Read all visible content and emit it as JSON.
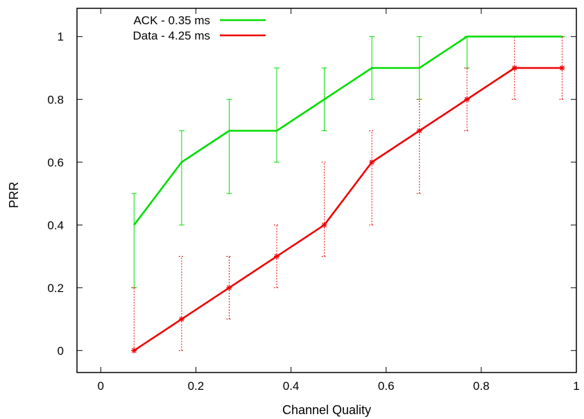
{
  "chart_data": {
    "type": "line",
    "title": "",
    "xlabel": "Channel Quality",
    "ylabel": "PRR",
    "xlim": [
      -0.05,
      1.0
    ],
    "ylim": [
      -0.07,
      1.09
    ],
    "xticks": [
      0,
      0.2,
      0.4,
      0.6,
      0.8,
      1
    ],
    "yticks": [
      0,
      0.2,
      0.4,
      0.6,
      0.8,
      1
    ],
    "xtick_labels": [
      "0",
      "0.2",
      "0.4",
      "0.6",
      "0.8",
      "1"
    ],
    "ytick_labels": [
      "0",
      "0.2",
      "0.4",
      "0.6",
      "0.8",
      "1"
    ],
    "grid": false,
    "legend_position": "top-left",
    "x": [
      0.07,
      0.17,
      0.27,
      0.37,
      0.47,
      0.57,
      0.67,
      0.77,
      0.87,
      0.97
    ],
    "series": [
      {
        "name": "ACK - 0.35 ms",
        "color": "#00dd00",
        "errorbar_style": "solid",
        "marker": "none",
        "values": [
          0.4,
          0.6,
          0.7,
          0.7,
          0.8,
          0.9,
          0.9,
          1.0,
          1.0,
          1.0
        ],
        "err_low": [
          0.2,
          0.4,
          0.5,
          0.6,
          0.7,
          0.8,
          0.8,
          0.9,
          1.0,
          1.0
        ],
        "err_high": [
          0.5,
          0.7,
          0.8,
          0.9,
          0.9,
          1.0,
          1.0,
          1.0,
          1.0,
          1.0
        ]
      },
      {
        "name": "Data - 4.25 ms",
        "color": "#ee0000",
        "errorbar_style": "dotted",
        "marker": "star",
        "values": [
          0.0,
          0.1,
          0.2,
          0.3,
          0.4,
          0.6,
          0.7,
          0.8,
          0.9,
          0.9
        ],
        "err_low": [
          0.0,
          0.0,
          0.1,
          0.2,
          0.3,
          0.4,
          0.5,
          0.7,
          0.8,
          0.8
        ],
        "err_high": [
          0.2,
          0.3,
          0.3,
          0.4,
          0.6,
          0.7,
          0.8,
          0.9,
          1.0,
          1.0
        ]
      }
    ]
  }
}
